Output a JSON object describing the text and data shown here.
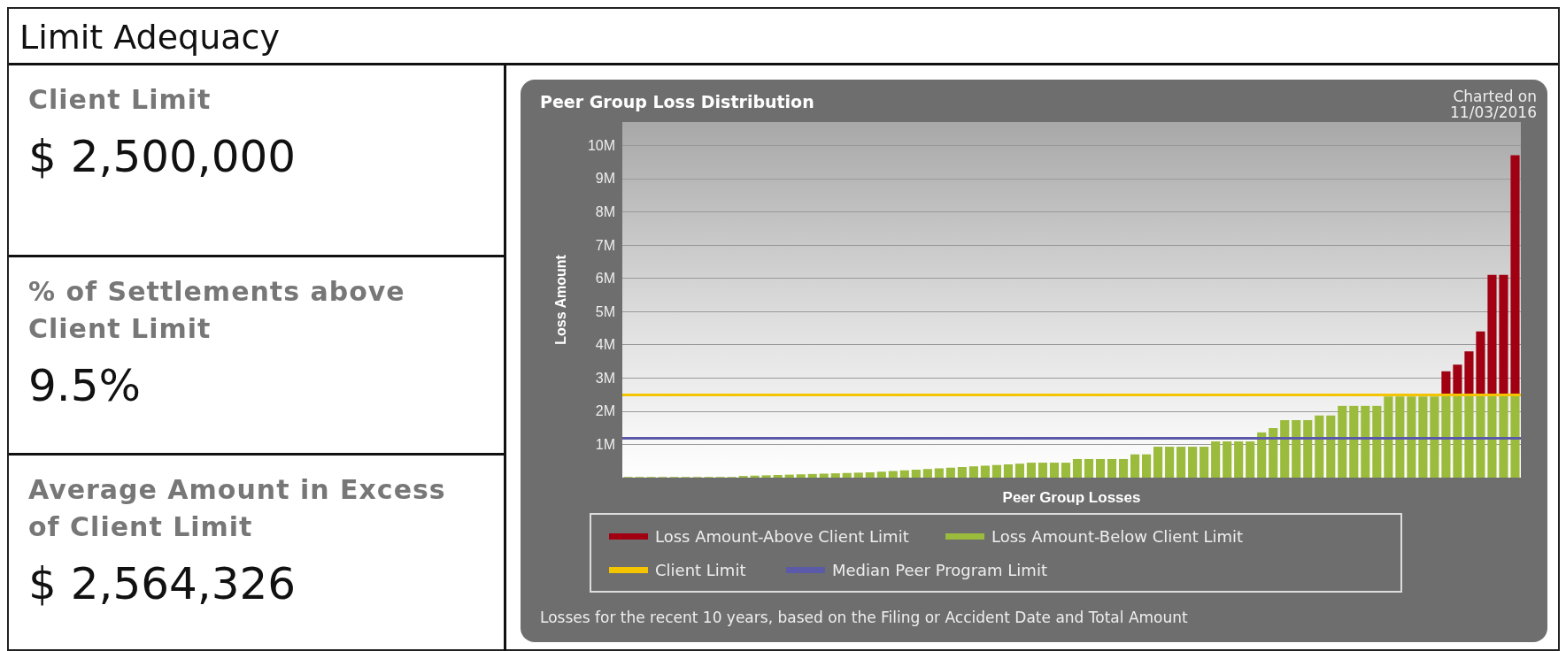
{
  "chart_data": [
    {
      "type": "other",
      "title": "Limit Adequacy",
      "annotations": [
        "Client Limit",
        "$ 2,500,000",
        "% of Settlements above Client Limit",
        "9.5%",
        "Average Amount in Excess of Client Limit",
        "$ 2,564,326"
      ]
    },
    {
      "type": "bar",
      "title": "Peer Group Loss Distribution",
      "subtitle": "Charted on 11/03/2016",
      "xlabel": "Peer Group Losses",
      "ylabel": "Loss Amount",
      "annotations": [
        "Losses for the recent 10 years, based on the Filing or Accident Date and Total Amount"
      ],
      "categories": [
        null,
        null,
        null,
        null,
        null,
        null,
        null,
        null,
        null,
        null,
        null,
        null,
        null,
        null,
        null,
        null,
        null,
        null,
        null,
        null,
        null,
        null,
        null,
        null,
        null,
        null,
        null,
        null,
        null,
        null,
        null,
        null,
        null,
        null,
        null,
        null,
        null,
        null,
        null,
        null,
        null,
        null,
        null,
        null,
        null,
        null,
        null,
        null,
        null,
        null,
        null,
        null,
        null,
        null,
        null,
        null,
        null,
        null,
        null,
        null,
        null,
        null,
        null,
        null,
        null,
        null,
        null,
        null,
        null,
        null,
        null,
        null,
        null,
        null,
        null,
        null,
        null,
        null
      ],
      "stacked": true,
      "series": [
        {
          "name": "Loss Amount-Below Client Limit",
          "color": "#9bbb3c",
          "values": [
            0.02,
            0.02,
            0.02,
            0.02,
            0.02,
            0.02,
            0.02,
            0.02,
            0.02,
            0.02,
            0.05,
            0.06,
            0.07,
            0.08,
            0.09,
            0.1,
            0.11,
            0.12,
            0.13,
            0.14,
            0.15,
            0.16,
            0.18,
            0.2,
            0.22,
            0.24,
            0.26,
            0.28,
            0.3,
            0.32,
            0.34,
            0.36,
            0.38,
            0.4,
            0.42,
            0.45,
            0.45,
            0.45,
            0.45,
            0.56,
            0.56,
            0.56,
            0.56,
            0.56,
            0.7,
            0.7,
            0.93,
            0.93,
            0.93,
            0.93,
            0.93,
            1.09,
            1.09,
            1.09,
            1.09,
            1.36,
            1.49,
            1.73,
            1.73,
            1.73,
            1.87,
            1.87,
            2.16,
            2.16,
            2.16,
            2.16,
            2.44,
            2.44,
            2.44,
            2.44,
            2.44,
            2.5,
            2.5,
            2.5,
            2.5,
            2.5,
            2.5,
            2.5
          ]
        },
        {
          "name": "Loss Amount-Above Client Limit",
          "color": "#a00012",
          "values": [
            null,
            null,
            null,
            null,
            null,
            null,
            null,
            null,
            null,
            null,
            null,
            null,
            null,
            null,
            null,
            null,
            null,
            null,
            null,
            null,
            null,
            null,
            null,
            null,
            null,
            null,
            null,
            null,
            null,
            null,
            null,
            null,
            null,
            null,
            null,
            null,
            null,
            null,
            null,
            null,
            null,
            null,
            null,
            null,
            null,
            null,
            null,
            null,
            null,
            null,
            null,
            null,
            null,
            null,
            null,
            null,
            null,
            null,
            null,
            null,
            null,
            null,
            null,
            null,
            null,
            null,
            null,
            null,
            null,
            null,
            null,
            0.7,
            0.9,
            1.3,
            1.9,
            3.6,
            3.6,
            7.2
          ]
        }
      ],
      "ref_lines": [
        {
          "axis": "y",
          "value": 2.5,
          "label": "Client Limit",
          "color": "#f5c400"
        },
        {
          "axis": "y",
          "value": 1.2,
          "label": "Median Peer Program Limit",
          "color": "#5a5aa8"
        }
      ],
      "ylim": [
        0,
        10.7
      ],
      "yticks": [
        {
          "value": 1,
          "label": "1M"
        },
        {
          "value": 2,
          "label": "2M"
        },
        {
          "value": 3,
          "label": "3M"
        },
        {
          "value": 4,
          "label": "4M"
        },
        {
          "value": 5,
          "label": "5M"
        },
        {
          "value": 6,
          "label": "6M"
        },
        {
          "value": 7,
          "label": "7M"
        },
        {
          "value": 8,
          "label": "8M"
        },
        {
          "value": 9,
          "label": "9M"
        },
        {
          "value": 10,
          "label": "10M"
        }
      ],
      "grid": "y",
      "legend": "bottom"
    }
  ]
}
